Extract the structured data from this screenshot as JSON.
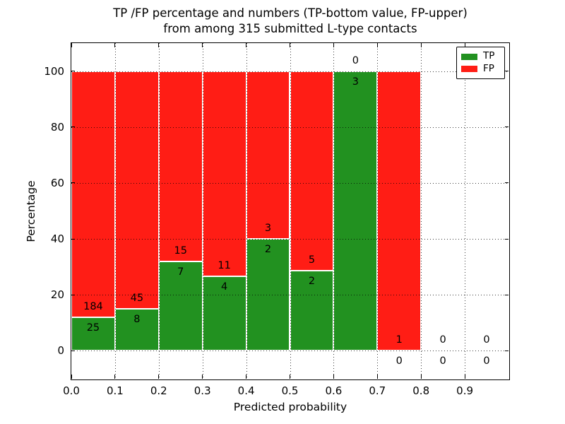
{
  "chart_data": {
    "type": "bar",
    "stacked": true,
    "title": "TP /FP percentage and numbers (TP-bottom value, FP-upper)\nfrom among 315 submitted L-type contacts",
    "title_line1": "TP /FP percentage and numbers (TP-bottom value, FP-upper)",
    "title_line2": "from among 315 submitted L-type contacts",
    "xlabel": "Predicted probability",
    "ylabel": "Percentage",
    "xlim": [
      0.0,
      1.0
    ],
    "ylim": [
      -10,
      110
    ],
    "x_tick_labels": [
      "0.0",
      "0.1",
      "0.2",
      "0.3",
      "0.4",
      "0.5",
      "0.6",
      "0.7",
      "0.8",
      "0.9"
    ],
    "y_ticks": [
      0,
      20,
      40,
      60,
      80,
      100
    ],
    "grid": "dotted-black",
    "legend_position": "upper-right",
    "legend": [
      {
        "label": "TP",
        "color": "#229120"
      },
      {
        "label": "FP",
        "color": "#ff1d15"
      }
    ],
    "colors": {
      "tp": "#229120",
      "fp": "#ff1d15",
      "bar_edge": "#ffffff"
    },
    "total_submitted": 315,
    "bins": [
      {
        "x_start": 0.0,
        "x_end": 0.1,
        "tp_count": 25,
        "fp_count": 184,
        "tp_pct": 12.0,
        "fp_pct": 88.0
      },
      {
        "x_start": 0.1,
        "x_end": 0.2,
        "tp_count": 8,
        "fp_count": 45,
        "tp_pct": 15.1,
        "fp_pct": 84.9
      },
      {
        "x_start": 0.2,
        "x_end": 0.3,
        "tp_count": 7,
        "fp_count": 15,
        "tp_pct": 31.8,
        "fp_pct": 68.2
      },
      {
        "x_start": 0.3,
        "x_end": 0.4,
        "tp_count": 4,
        "fp_count": 11,
        "tp_pct": 26.7,
        "fp_pct": 73.3
      },
      {
        "x_start": 0.4,
        "x_end": 0.5,
        "tp_count": 2,
        "fp_count": 3,
        "tp_pct": 40.0,
        "fp_pct": 60.0
      },
      {
        "x_start": 0.5,
        "x_end": 0.6,
        "tp_count": 2,
        "fp_count": 5,
        "tp_pct": 28.6,
        "fp_pct": 71.4
      },
      {
        "x_start": 0.6,
        "x_end": 0.7,
        "tp_count": 3,
        "fp_count": 0,
        "tp_pct": 100.0,
        "fp_pct": 0.0
      },
      {
        "x_start": 0.7,
        "x_end": 0.8,
        "tp_count": 0,
        "fp_count": 1,
        "tp_pct": 0.0,
        "fp_pct": 100.0
      },
      {
        "x_start": 0.8,
        "x_end": 0.9,
        "tp_count": 0,
        "fp_count": 0,
        "tp_pct": null,
        "fp_pct": null
      },
      {
        "x_start": 0.9,
        "x_end": 1.0,
        "tp_count": 0,
        "fp_count": 0,
        "tp_pct": null,
        "fp_pct": null
      }
    ]
  }
}
